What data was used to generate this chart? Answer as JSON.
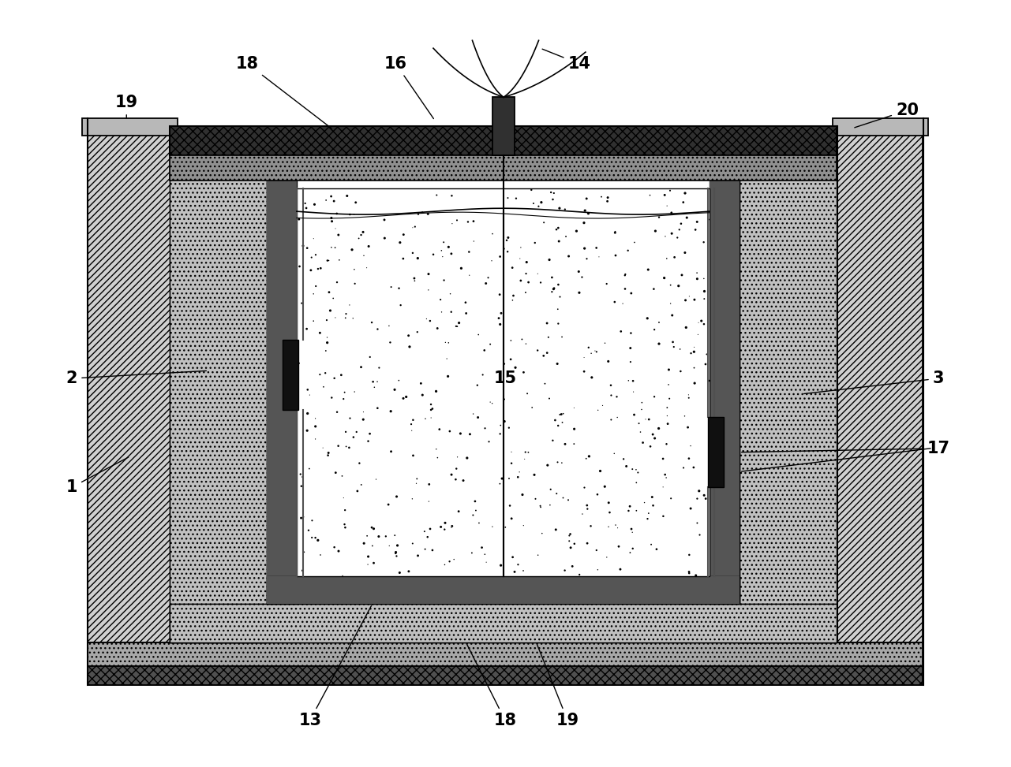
{
  "fig_width": 12.81,
  "fig_height": 9.73,
  "bg_color": "#ffffff",
  "fluid_dots": 600,
  "fluid_seed": 42,
  "lbl_fontsize": 15
}
